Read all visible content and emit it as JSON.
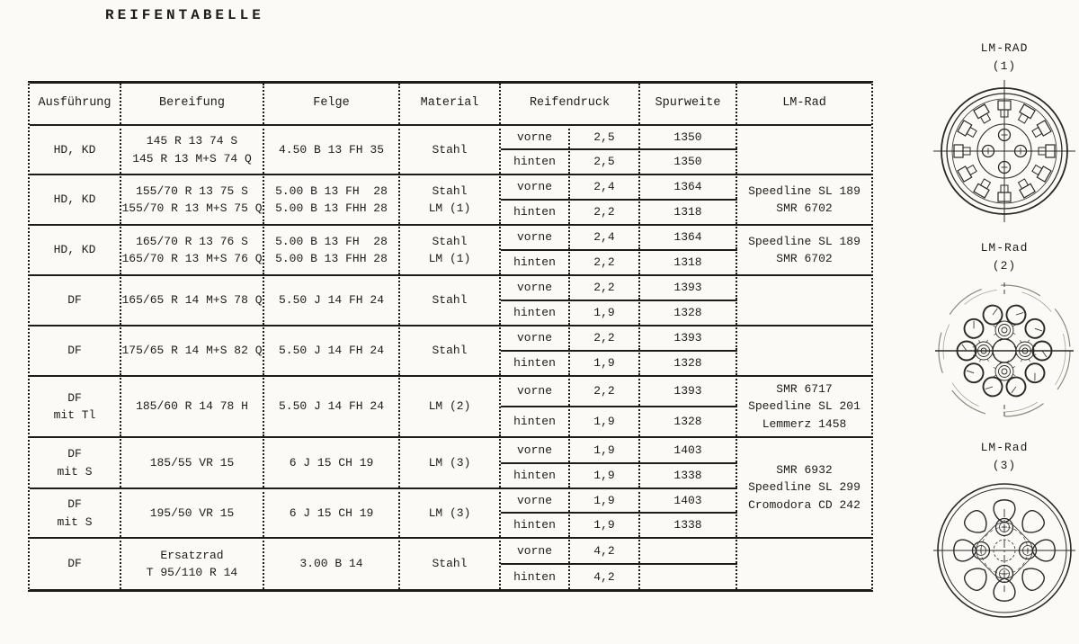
{
  "page": {
    "title": "REIFENTABELLE"
  },
  "table": {
    "headers": {
      "ausfuehrung": "Ausführung",
      "bereifung": "Bereifung",
      "felge": "Felge",
      "material": "Material",
      "reifendruck": "Reifendruck",
      "spurweite": "Spurweite",
      "lmrad": "LM-Rad"
    },
    "rows": [
      {
        "ausfuehrung": [
          "HD, KD"
        ],
        "bereifung": [
          "145 R 13 74 S",
          "145 R 13 M+S 74 Q"
        ],
        "felge": [
          "4.50 B 13 FH 35"
        ],
        "material": [
          "Stahl"
        ],
        "reifendruck": [
          {
            "pos": "vorne",
            "druck": "2,5",
            "spurweite": "1350"
          },
          {
            "pos": "hinten",
            "druck": "2,5",
            "spurweite": "1350"
          }
        ],
        "lmrad": []
      },
      {
        "ausfuehrung": [
          "HD, KD"
        ],
        "bereifung": [
          "155/70 R 13 75 S",
          "155/70 R 13 M+S 75 Q"
        ],
        "felge": [
          "5.00 B 13 FH  28",
          "5.00 B 13 FHH 28"
        ],
        "material": [
          "Stahl",
          "LM (1)"
        ],
        "reifendruck": [
          {
            "pos": "vorne",
            "druck": "2,4",
            "spurweite": "1364"
          },
          {
            "pos": "hinten",
            "druck": "2,2",
            "spurweite": "1318"
          }
        ],
        "lmrad": [
          "Speedline SL 189",
          "SMR 6702"
        ]
      },
      {
        "ausfuehrung": [
          "HD, KD"
        ],
        "bereifung": [
          "165/70 R 13 76 S",
          "165/70 R 13 M+S 76 Q"
        ],
        "felge": [
          "5.00 B 13 FH  28",
          "5.00 B 13 FHH 28"
        ],
        "material": [
          "Stahl",
          "LM (1)"
        ],
        "reifendruck": [
          {
            "pos": "vorne",
            "druck": "2,4",
            "spurweite": "1364"
          },
          {
            "pos": "hinten",
            "druck": "2,2",
            "spurweite": "1318"
          }
        ],
        "lmrad": [
          "Speedline SL 189",
          "SMR 6702"
        ]
      },
      {
        "ausfuehrung": [
          "DF"
        ],
        "bereifung": [
          "165/65 R 14 M+S 78 Q"
        ],
        "felge": [
          "5.50 J 14 FH 24"
        ],
        "material": [
          "Stahl"
        ],
        "reifendruck": [
          {
            "pos": "vorne",
            "druck": "2,2",
            "spurweite": "1393"
          },
          {
            "pos": "hinten",
            "druck": "1,9",
            "spurweite": "1328"
          }
        ],
        "lmrad": []
      },
      {
        "ausfuehrung": [
          "DF"
        ],
        "bereifung": [
          "175/65 R 14 M+S 82 Q"
        ],
        "felge": [
          "5.50 J 14 FH 24"
        ],
        "material": [
          "Stahl"
        ],
        "reifendruck": [
          {
            "pos": "vorne",
            "druck": "2,2",
            "spurweite": "1393"
          },
          {
            "pos": "hinten",
            "druck": "1,9",
            "spurweite": "1328"
          }
        ],
        "lmrad": []
      },
      {
        "ausfuehrung": [
          "DF",
          "mit Tl"
        ],
        "bereifung": [
          "185/60 R 14 78 H"
        ],
        "felge": [
          "5.50 J 14 FH 24"
        ],
        "material": [
          "LM (2)"
        ],
        "reifendruck": [
          {
            "pos": "vorne",
            "druck": "2,2",
            "spurweite": "1393"
          },
          {
            "pos": "hinten",
            "druck": "1,9",
            "spurweite": "1328"
          }
        ],
        "lmrad": [
          "SMR 6717",
          "Speedline SL 201",
          "Lemmerz 1458"
        ]
      },
      {
        "ausfuehrung": [
          "DF",
          "mit S"
        ],
        "bereifung": [
          "185/55 VR 15"
        ],
        "felge": [
          "6 J 15 CH 19"
        ],
        "material": [
          "LM (3)"
        ],
        "reifendruck": [
          {
            "pos": "vorne",
            "druck": "1,9",
            "spurweite": "1403"
          },
          {
            "pos": "hinten",
            "druck": "1,9",
            "spurweite": "1338"
          }
        ],
        "lmrad": [
          "SMR 6932",
          "Speedline SL 299",
          "Cromodora CD 242"
        ],
        "lmrad_rowspan": 4
      },
      {
        "ausfuehrung": [
          "DF",
          "mit S"
        ],
        "bereifung": [
          "195/50 VR 15"
        ],
        "felge": [
          "6 J 15 CH 19"
        ],
        "material": [
          "LM (3)"
        ],
        "reifendruck": [
          {
            "pos": "vorne",
            "druck": "1,9",
            "spurweite": "1403"
          },
          {
            "pos": "hinten",
            "druck": "1,9",
            "spurweite": "1338"
          }
        ],
        "lmrad": null
      },
      {
        "ausfuehrung": [
          "DF"
        ],
        "bereifung": [
          "Ersatzrad",
          "T 95/110 R 14"
        ],
        "felge": [
          "3.00 B 14"
        ],
        "material": [
          "Stahl"
        ],
        "reifendruck": [
          {
            "pos": "vorne",
            "druck": "4,2",
            "spurweite": ""
          },
          {
            "pos": "hinten",
            "druck": "4,2",
            "spurweite": ""
          }
        ],
        "lmrad": []
      }
    ]
  },
  "wheels": [
    {
      "label": "LM-RAD",
      "number": "(1)"
    },
    {
      "label": "LM-Rad",
      "number": "(2)"
    },
    {
      "label": "LM-Rad",
      "number": "(3)"
    }
  ]
}
